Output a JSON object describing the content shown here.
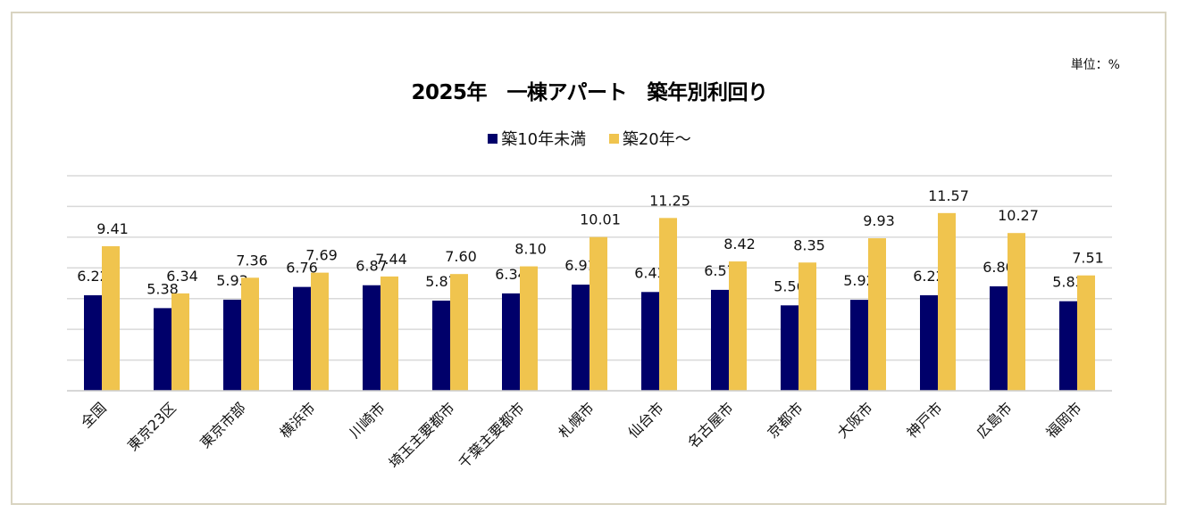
{
  "chart_data": {
    "type": "bar",
    "title": "2025年　一棟アパート　築年別利回り",
    "unit_label": "単位：%",
    "categories": [
      "全国",
      "東京23区",
      "東京市部",
      "横浜市",
      "川崎市",
      "埼玉主要都市",
      "千葉主要都市",
      "札幌市",
      "仙台市",
      "名古屋市",
      "京都市",
      "大阪市",
      "神戸市",
      "広島市",
      "福岡市"
    ],
    "series": [
      {
        "name": "築10年未満",
        "color": "#00006a",
        "values": [
          6.22,
          5.38,
          5.93,
          6.76,
          6.87,
          5.87,
          6.34,
          6.91,
          6.43,
          6.57,
          5.56,
          5.92,
          6.22,
          6.8,
          5.83
        ]
      },
      {
        "name": "築20年～",
        "color": "#f0c44e",
        "values": [
          9.41,
          6.34,
          7.36,
          7.69,
          7.44,
          7.6,
          8.1,
          10.01,
          11.25,
          8.42,
          8.35,
          9.93,
          11.57,
          10.27,
          7.51
        ]
      }
    ],
    "ylim": [
      0,
      14
    ],
    "ytick_step": 2,
    "grid": true,
    "ytick_labels_shown": false,
    "legend_position": "top"
  }
}
